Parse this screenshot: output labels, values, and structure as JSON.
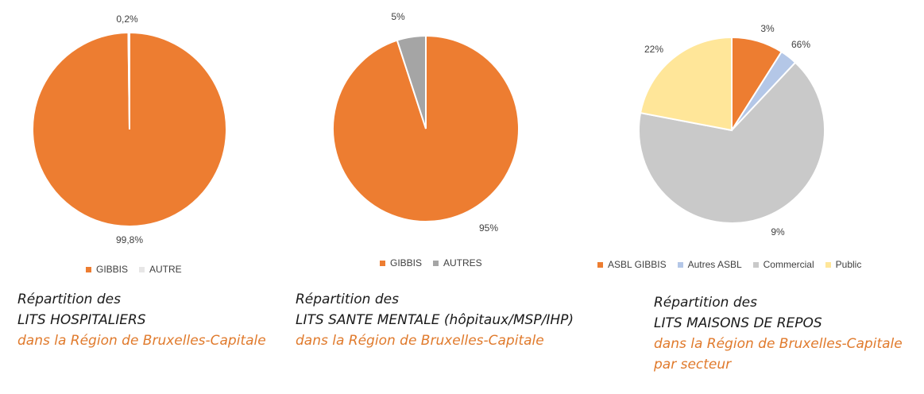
{
  "colors": {
    "orange": "#ED7D31",
    "grey": "#A5A5A5",
    "lightgrey": "#C9C9C9",
    "lightblue": "#B4C7E7",
    "yellow": "#FFE699",
    "pale": "#E7E6E6"
  },
  "chart_data": [
    {
      "type": "pie",
      "labels": [
        "GIBBIS",
        "AUTRE"
      ],
      "values": [
        99.8,
        0.2
      ],
      "data_labels": [
        "99,8%",
        "0,2%"
      ],
      "colors": [
        "#ED7D31",
        "#E7E6E6"
      ],
      "legend": "bottom",
      "caption": [
        "Répartition des",
        "LITS HOSPITALIERS",
        "dans la Région de Bruxelles-Capitale"
      ]
    },
    {
      "type": "pie",
      "labels": [
        "GIBBIS",
        "AUTRES"
      ],
      "values": [
        95,
        5
      ],
      "data_labels": [
        "95%",
        "5%"
      ],
      "colors": [
        "#ED7D31",
        "#A5A5A5"
      ],
      "legend": "bottom",
      "caption": [
        "Répartition des",
        "LITS SANTE MENTALE (hôpitaux/MSP/IHP)",
        "dans la Région de Bruxelles-Capitale"
      ]
    },
    {
      "type": "pie",
      "labels": [
        "ASBL GIBBIS",
        "Autres ASBL",
        "Commercial",
        "Public"
      ],
      "values": [
        9,
        3,
        66,
        22
      ],
      "data_labels": [
        "9%",
        "3%",
        "66%",
        "22%"
      ],
      "colors": [
        "#ED7D31",
        "#B4C7E7",
        "#C9C9C9",
        "#FFE699"
      ],
      "legend": "bottom",
      "caption": [
        "Répartition des",
        "LITS MAISONS DE REPOS",
        "dans la Région de Bruxelles-Capitale",
        "par secteur"
      ]
    }
  ]
}
